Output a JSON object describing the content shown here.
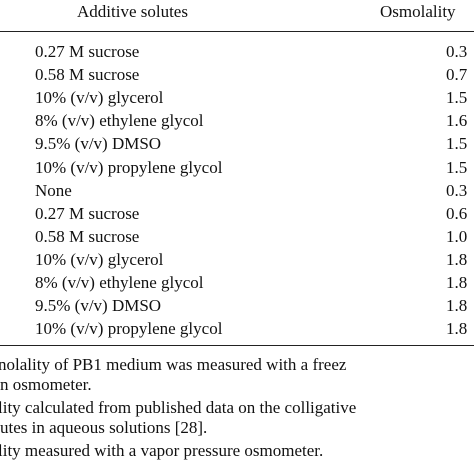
{
  "table": {
    "header": [
      "Additive solutes",
      "Osmolality"
    ],
    "rows": [
      [
        "0.27 M sucrose",
        "0.3"
      ],
      [
        "0.58 M sucrose",
        "0.7"
      ],
      [
        "10% (v/v) glycerol",
        "1.5"
      ],
      [
        "8% (v/v) ethylene glycol",
        "1.6"
      ],
      [
        "9.5% (v/v) DMSO",
        "1.5"
      ],
      [
        "10% (v/v) propylene glycol",
        "1.5"
      ],
      [
        "None",
        "0.3"
      ],
      [
        "0.27 M sucrose",
        "0.6"
      ],
      [
        "0.58 M sucrose",
        "1.0"
      ],
      [
        "10% (v/v) glycerol",
        "1.8"
      ],
      [
        "8% (v/v) ethylene glycol",
        "1.8"
      ],
      [
        "9.5% (v/v) DMSO",
        "1.8"
      ],
      [
        "10% (v/v) propylene glycol",
        "1.8"
      ]
    ]
  },
  "footnotes": [
    "nolality of PB1 medium was measured with a freez",
    "n osmometer.",
    "lity calculated from published data on the colligative",
    "utes in aqueous solutions [28].",
    "lity measured with a vapor pressure osmometer."
  ]
}
